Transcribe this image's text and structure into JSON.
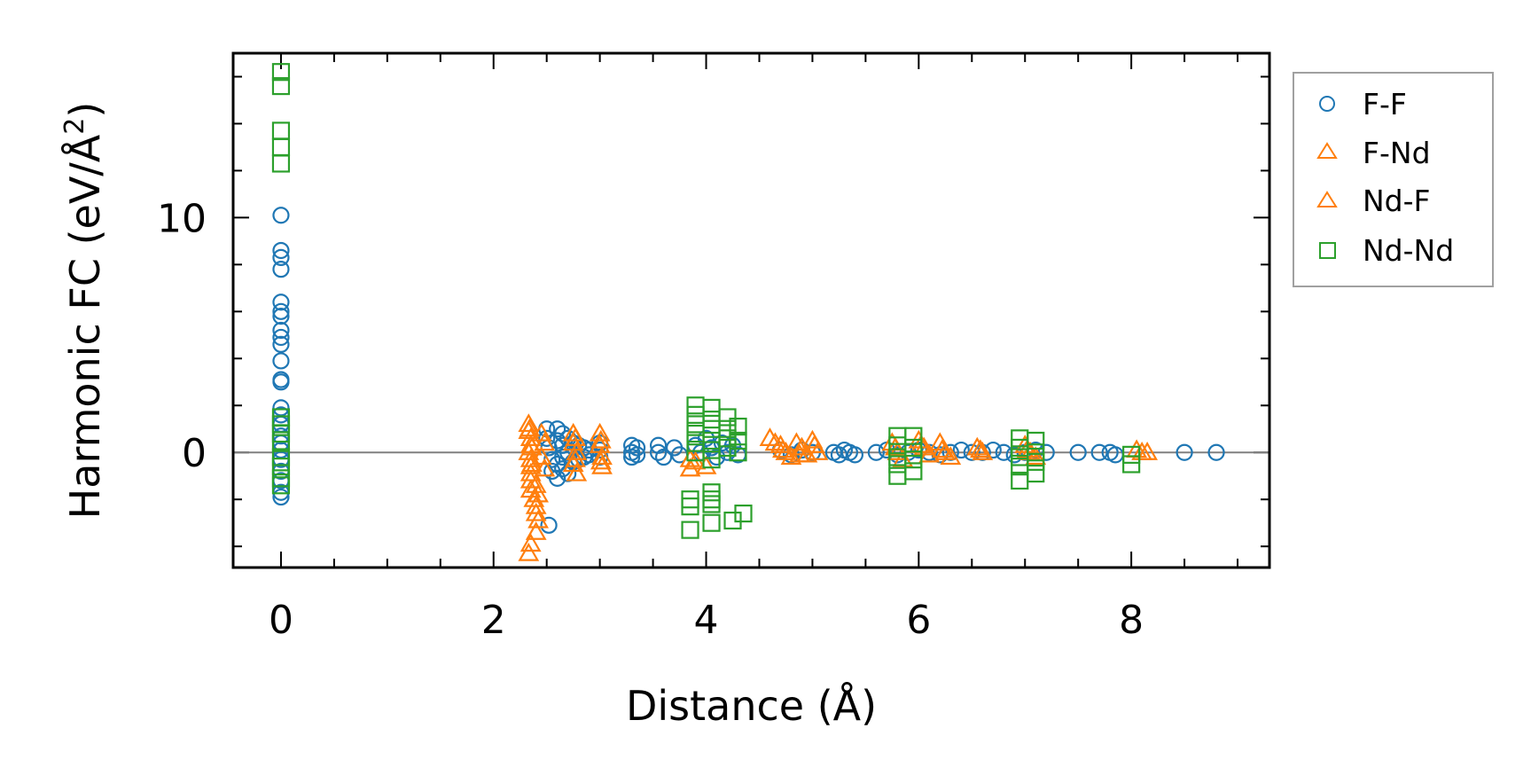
{
  "chart_data": {
    "type": "scatter",
    "xlabel": "Distance (Å)",
    "ylabel_main": "Harmonic FC (eV/Å",
    "ylabel_sup": "2",
    "ylabel_close": ")",
    "xlim": [
      -0.45,
      9.3
    ],
    "ylim": [
      -4.9,
      17
    ],
    "x_ticks": [
      0,
      2,
      4,
      6,
      8
    ],
    "x_tick_labels": [
      "0",
      "2",
      "4",
      "6",
      "8"
    ],
    "y_ticks": [
      0,
      10
    ],
    "y_tick_labels": [
      "0",
      "10"
    ],
    "legend_position": "outside-right",
    "reference_line_y": 0,
    "series": [
      {
        "name": "F-F",
        "marker": "circle",
        "color": "#1f77b4",
        "points": [
          [
            0,
            10.1
          ],
          [
            0,
            8.6
          ],
          [
            0,
            8.3
          ],
          [
            0,
            7.8
          ],
          [
            0,
            6.4
          ],
          [
            0,
            6.0
          ],
          [
            0,
            5.8
          ],
          [
            0,
            5.2
          ],
          [
            0,
            4.9
          ],
          [
            0,
            4.6
          ],
          [
            0,
            3.9
          ],
          [
            0,
            3.1
          ],
          [
            0,
            3.0
          ],
          [
            0,
            1.9
          ],
          [
            0,
            1.6
          ],
          [
            0,
            1.2
          ],
          [
            0,
            0.7
          ],
          [
            0,
            0.4
          ],
          [
            0,
            0.1
          ],
          [
            0,
            -0.3
          ],
          [
            0,
            -0.8
          ],
          [
            0,
            -1.2
          ],
          [
            0,
            -1.7
          ],
          [
            0,
            -1.9
          ],
          [
            2.52,
            -3.1
          ],
          [
            2.5,
            1.0
          ],
          [
            2.5,
            0.6
          ],
          [
            2.52,
            0.2
          ],
          [
            2.55,
            -0.3
          ],
          [
            2.55,
            -0.8
          ],
          [
            2.6,
            1.0
          ],
          [
            2.6,
            0.5
          ],
          [
            2.6,
            -0.5
          ],
          [
            2.6,
            -1.1
          ],
          [
            2.65,
            0.8
          ],
          [
            2.65,
            0.3
          ],
          [
            2.65,
            -0.2
          ],
          [
            2.65,
            -0.7
          ],
          [
            2.7,
            0.6
          ],
          [
            2.7,
            0.0
          ],
          [
            2.7,
            -0.9
          ],
          [
            2.75,
            0.4
          ],
          [
            2.75,
            -0.4
          ],
          [
            2.8,
            0.3
          ],
          [
            2.8,
            -0.3
          ],
          [
            2.85,
            0.2
          ],
          [
            2.85,
            -0.2
          ],
          [
            2.9,
            0.1
          ],
          [
            2.9,
            -0.1
          ],
          [
            3.0,
            0.4
          ],
          [
            3.0,
            0.1
          ],
          [
            3.0,
            -0.2
          ],
          [
            3.3,
            0.3
          ],
          [
            3.3,
            0.0
          ],
          [
            3.3,
            -0.2
          ],
          [
            3.35,
            0.2
          ],
          [
            3.35,
            -0.1
          ],
          [
            3.55,
            0.3
          ],
          [
            3.55,
            0.0
          ],
          [
            3.6,
            -0.2
          ],
          [
            3.7,
            0.2
          ],
          [
            3.75,
            -0.1
          ],
          [
            3.9,
            0.3
          ],
          [
            3.95,
            0.0
          ],
          [
            4.0,
            0.6
          ],
          [
            4.05,
            0.2
          ],
          [
            4.1,
            -0.2
          ],
          [
            4.15,
            0.4
          ],
          [
            4.2,
            0.0
          ],
          [
            4.25,
            0.3
          ],
          [
            4.3,
            -0.1
          ],
          [
            4.7,
            0.1
          ],
          [
            4.8,
            -0.1
          ],
          [
            4.9,
            0.1
          ],
          [
            5.0,
            0.0
          ],
          [
            5.2,
            0.0
          ],
          [
            5.25,
            -0.1
          ],
          [
            5.3,
            0.1
          ],
          [
            5.35,
            0.0
          ],
          [
            5.4,
            -0.1
          ],
          [
            5.6,
            0.0
          ],
          [
            5.7,
            0.1
          ],
          [
            5.8,
            -0.1
          ],
          [
            5.9,
            0.0
          ],
          [
            6.0,
            0.1
          ],
          [
            6.1,
            0.0
          ],
          [
            6.2,
            -0.1
          ],
          [
            6.3,
            0.0
          ],
          [
            6.4,
            0.1
          ],
          [
            6.5,
            0.0
          ],
          [
            6.6,
            0.0
          ],
          [
            6.7,
            0.1
          ],
          [
            6.8,
            0.0
          ],
          [
            6.9,
            -0.1
          ],
          [
            7.0,
            0.0
          ],
          [
            7.1,
            0.1
          ],
          [
            7.2,
            0.0
          ],
          [
            7.5,
            0.0
          ],
          [
            7.7,
            0.0
          ],
          [
            7.8,
            0.0
          ],
          [
            7.85,
            -0.1
          ],
          [
            8.5,
            0.0
          ],
          [
            8.8,
            0.0
          ]
        ]
      },
      {
        "name": "F-Nd",
        "marker": "triangle",
        "color": "#ff7f0e",
        "points": [
          [
            2.33,
            1.2
          ],
          [
            2.33,
            0.9
          ],
          [
            2.35,
            0.6
          ],
          [
            2.35,
            0.3
          ],
          [
            2.33,
            0.0
          ],
          [
            2.35,
            -0.3
          ],
          [
            2.35,
            -0.6
          ],
          [
            2.35,
            -0.9
          ],
          [
            2.35,
            -1.2
          ],
          [
            2.35,
            -1.6
          ],
          [
            2.38,
            -2.0
          ],
          [
            2.4,
            -2.3
          ],
          [
            2.4,
            -2.6
          ],
          [
            2.42,
            -2.9
          ],
          [
            2.4,
            -3.4
          ],
          [
            2.35,
            -3.9
          ],
          [
            2.33,
            -4.3
          ],
          [
            2.45,
            0.8
          ],
          [
            2.48,
            0.4
          ],
          [
            2.45,
            -0.2
          ],
          [
            2.48,
            -0.7
          ],
          [
            2.75,
            0.8
          ],
          [
            2.75,
            0.4
          ],
          [
            2.78,
            0.0
          ],
          [
            2.75,
            -0.5
          ],
          [
            2.78,
            -0.9
          ],
          [
            3.0,
            0.8
          ],
          [
            3.0,
            0.3
          ],
          [
            3.02,
            -0.2
          ],
          [
            3.02,
            -0.6
          ],
          [
            3.85,
            -0.3
          ],
          [
            3.85,
            -0.7
          ],
          [
            3.9,
            -0.4
          ],
          [
            4.0,
            -0.6
          ],
          [
            4.6,
            0.6
          ],
          [
            4.7,
            0.3
          ],
          [
            4.75,
            0.0
          ],
          [
            4.8,
            -0.2
          ],
          [
            4.85,
            0.4
          ],
          [
            4.9,
            0.2
          ],
          [
            4.95,
            -0.1
          ],
          [
            5.0,
            0.5
          ],
          [
            5.05,
            0.0
          ],
          [
            5.75,
            0.4
          ],
          [
            5.8,
            0.0
          ],
          [
            5.85,
            -0.3
          ],
          [
            6.0,
            0.5
          ],
          [
            6.05,
            0.2
          ],
          [
            6.1,
            -0.1
          ],
          [
            6.2,
            0.4
          ],
          [
            6.25,
            0.0
          ],
          [
            6.3,
            -0.2
          ],
          [
            6.55,
            0.2
          ],
          [
            6.6,
            0.0
          ],
          [
            7.0,
            0.3
          ],
          [
            7.05,
            0.0
          ],
          [
            7.1,
            -0.2
          ],
          [
            8.05,
            0.1
          ],
          [
            8.15,
            0.0
          ]
        ]
      },
      {
        "name": "Nd-F",
        "marker": "triangle",
        "color": "#ff7f0e",
        "points": [
          [
            2.34,
            1.0
          ],
          [
            2.36,
            0.2
          ],
          [
            2.36,
            -0.5
          ],
          [
            2.4,
            -1.4
          ],
          [
            2.42,
            -1.8
          ],
          [
            2.77,
            0.6
          ],
          [
            2.77,
            -0.3
          ],
          [
            3.01,
            0.5
          ],
          [
            3.01,
            -0.4
          ],
          [
            4.65,
            0.4
          ],
          [
            4.72,
            0.1
          ],
          [
            4.88,
            -0.1
          ],
          [
            5.02,
            0.3
          ],
          [
            5.78,
            0.2
          ],
          [
            6.02,
            0.3
          ],
          [
            6.22,
            0.1
          ],
          [
            6.58,
            0.1
          ],
          [
            7.02,
            0.1
          ],
          [
            8.1,
            0.0
          ]
        ]
      },
      {
        "name": "Nd-Nd",
        "marker": "square",
        "color": "#2ca02c",
        "points": [
          [
            0,
            16.2
          ],
          [
            0,
            15.6
          ],
          [
            0,
            13.7
          ],
          [
            0,
            13.0
          ],
          [
            0,
            12.3
          ],
          [
            0,
            1.5
          ],
          [
            0,
            1.2
          ],
          [
            0,
            0.8
          ],
          [
            0,
            0.4
          ],
          [
            0,
            -0.2
          ],
          [
            0,
            -0.6
          ],
          [
            0,
            -1.1
          ],
          [
            0,
            -1.4
          ],
          [
            3.9,
            2.0
          ],
          [
            3.9,
            1.6
          ],
          [
            3.9,
            1.2
          ],
          [
            3.9,
            0.8
          ],
          [
            3.9,
            0.4
          ],
          [
            3.9,
            0.0
          ],
          [
            4.05,
            1.9
          ],
          [
            4.05,
            1.4
          ],
          [
            4.05,
            1.0
          ],
          [
            4.05,
            0.5
          ],
          [
            4.05,
            0.1
          ],
          [
            4.05,
            -0.3
          ],
          [
            4.2,
            1.5
          ],
          [
            4.2,
            1.0
          ],
          [
            4.2,
            0.6
          ],
          [
            4.2,
            0.2
          ],
          [
            4.3,
            1.1
          ],
          [
            4.3,
            0.5
          ],
          [
            4.3,
            0.0
          ],
          [
            3.85,
            -2.0
          ],
          [
            3.85,
            -2.3
          ],
          [
            3.85,
            -3.3
          ],
          [
            4.05,
            -1.7
          ],
          [
            4.05,
            -2.0
          ],
          [
            4.05,
            -2.2
          ],
          [
            4.05,
            -3.0
          ],
          [
            4.25,
            -2.9
          ],
          [
            4.35,
            -2.6
          ],
          [
            5.8,
            0.7
          ],
          [
            5.8,
            0.3
          ],
          [
            5.8,
            -0.2
          ],
          [
            5.8,
            -0.5
          ],
          [
            5.8,
            -1.0
          ],
          [
            5.95,
            0.7
          ],
          [
            5.95,
            0.2
          ],
          [
            5.95,
            -0.3
          ],
          [
            5.95,
            -0.8
          ],
          [
            6.95,
            0.6
          ],
          [
            6.95,
            0.2
          ],
          [
            6.95,
            -0.2
          ],
          [
            6.95,
            -0.6
          ],
          [
            6.95,
            -1.2
          ],
          [
            7.1,
            0.5
          ],
          [
            7.1,
            0.0
          ],
          [
            7.1,
            -0.4
          ],
          [
            7.1,
            -0.9
          ],
          [
            8.0,
            -0.1
          ],
          [
            8.0,
            -0.5
          ]
        ]
      }
    ]
  }
}
